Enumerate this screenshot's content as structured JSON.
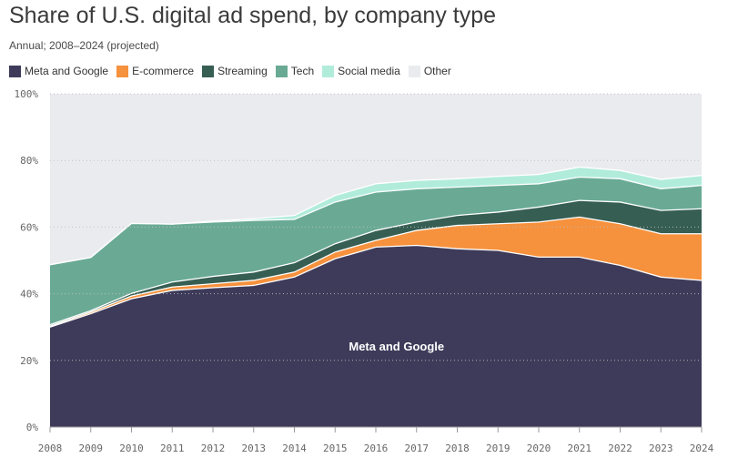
{
  "chart_data": {
    "type": "area",
    "stacked": true,
    "percent": true,
    "title": "Share of U.S. digital ad spend, by company type",
    "subtitle": "Annual; 2008–2024 (projected)",
    "xlabel": "",
    "ylabel": "",
    "ylim": [
      0,
      100
    ],
    "y_ticks": [
      "0%",
      "20%",
      "40%",
      "60%",
      "80%",
      "100%"
    ],
    "x": [
      "2008",
      "2009",
      "2010",
      "2011",
      "2012",
      "2013",
      "2014",
      "2015",
      "2016",
      "2017",
      "2018",
      "2019",
      "2020",
      "2021",
      "2022",
      "2023",
      "2024"
    ],
    "series": [
      {
        "name": "Meta and Google",
        "color": "#3e3b5a",
        "values": [
          30.0,
          34.0,
          38.5,
          41.0,
          41.8,
          42.5,
          45.0,
          50.5,
          54.0,
          54.5,
          53.5,
          53.0,
          51.0,
          51.0,
          48.5,
          45.0,
          44.0
        ]
      },
      {
        "name": "E-commerce",
        "color": "#f6913d",
        "values": [
          0.3,
          0.5,
          0.8,
          1.0,
          1.2,
          1.5,
          1.5,
          2.0,
          2.0,
          4.5,
          7.0,
          8.0,
          10.5,
          12.0,
          12.5,
          13.0,
          14.0
        ]
      },
      {
        "name": "Streaming",
        "color": "#365e52",
        "values": [
          0.4,
          0.4,
          0.8,
          1.5,
          2.2,
          2.5,
          2.8,
          2.5,
          3.0,
          2.5,
          3.0,
          3.5,
          4.5,
          5.0,
          6.5,
          7.0,
          7.5
        ]
      },
      {
        "name": "Tech",
        "color": "#6aaa95",
        "values": [
          18.0,
          16.0,
          21.0,
          17.4,
          16.3,
          15.5,
          13.0,
          12.5,
          11.5,
          10.0,
          8.5,
          8.0,
          7.0,
          7.0,
          7.0,
          6.5,
          7.0
        ]
      },
      {
        "name": "Social media",
        "color": "#b1ecdb",
        "values": [
          0.0,
          0.0,
          0.0,
          0.0,
          0.3,
          0.5,
          1.2,
          2.0,
          2.5,
          2.5,
          2.5,
          2.7,
          2.8,
          3.0,
          2.5,
          2.8,
          3.0
        ]
      },
      {
        "name": "Other",
        "color": "#eaebee",
        "values": [
          51.3,
          49.1,
          38.9,
          39.1,
          38.2,
          37.5,
          36.5,
          30.5,
          27.0,
          26.0,
          25.5,
          24.8,
          24.2,
          22.0,
          23.0,
          25.7,
          24.5
        ]
      }
    ],
    "annotations": [
      {
        "text": "Meta and Google",
        "x": "2017",
        "y": 23
      }
    ],
    "grid": true,
    "legend": "top-left"
  }
}
